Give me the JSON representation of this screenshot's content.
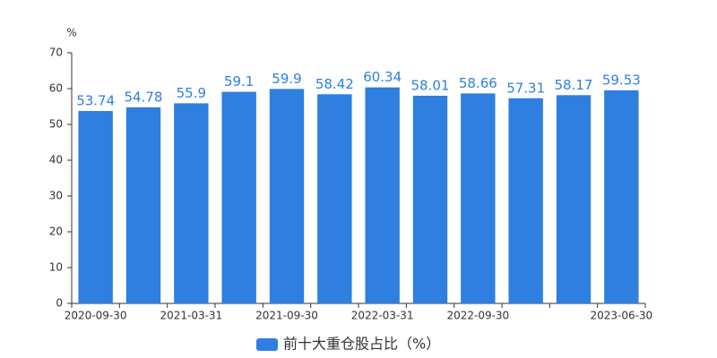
{
  "chart_data": {
    "type": "bar",
    "y_unit": "%",
    "categories": [
      "2020-09-30",
      null,
      "2021-03-31",
      null,
      "2021-09-30",
      null,
      "2022-03-31",
      null,
      "2022-09-30",
      null,
      null,
      "2023-06-30"
    ],
    "series": [
      {
        "name": "前十大重仓股占比（%）",
        "color": "#2e7fe0",
        "values": [
          53.74,
          54.78,
          55.9,
          59.1,
          59.9,
          58.42,
          60.34,
          58.01,
          58.66,
          57.31,
          58.17,
          59.53
        ]
      }
    ],
    "ylim": [
      0,
      70
    ],
    "yticks": [
      0,
      10,
      20,
      30,
      40,
      50,
      60,
      70
    ],
    "grid": false,
    "legend": "bottom"
  }
}
